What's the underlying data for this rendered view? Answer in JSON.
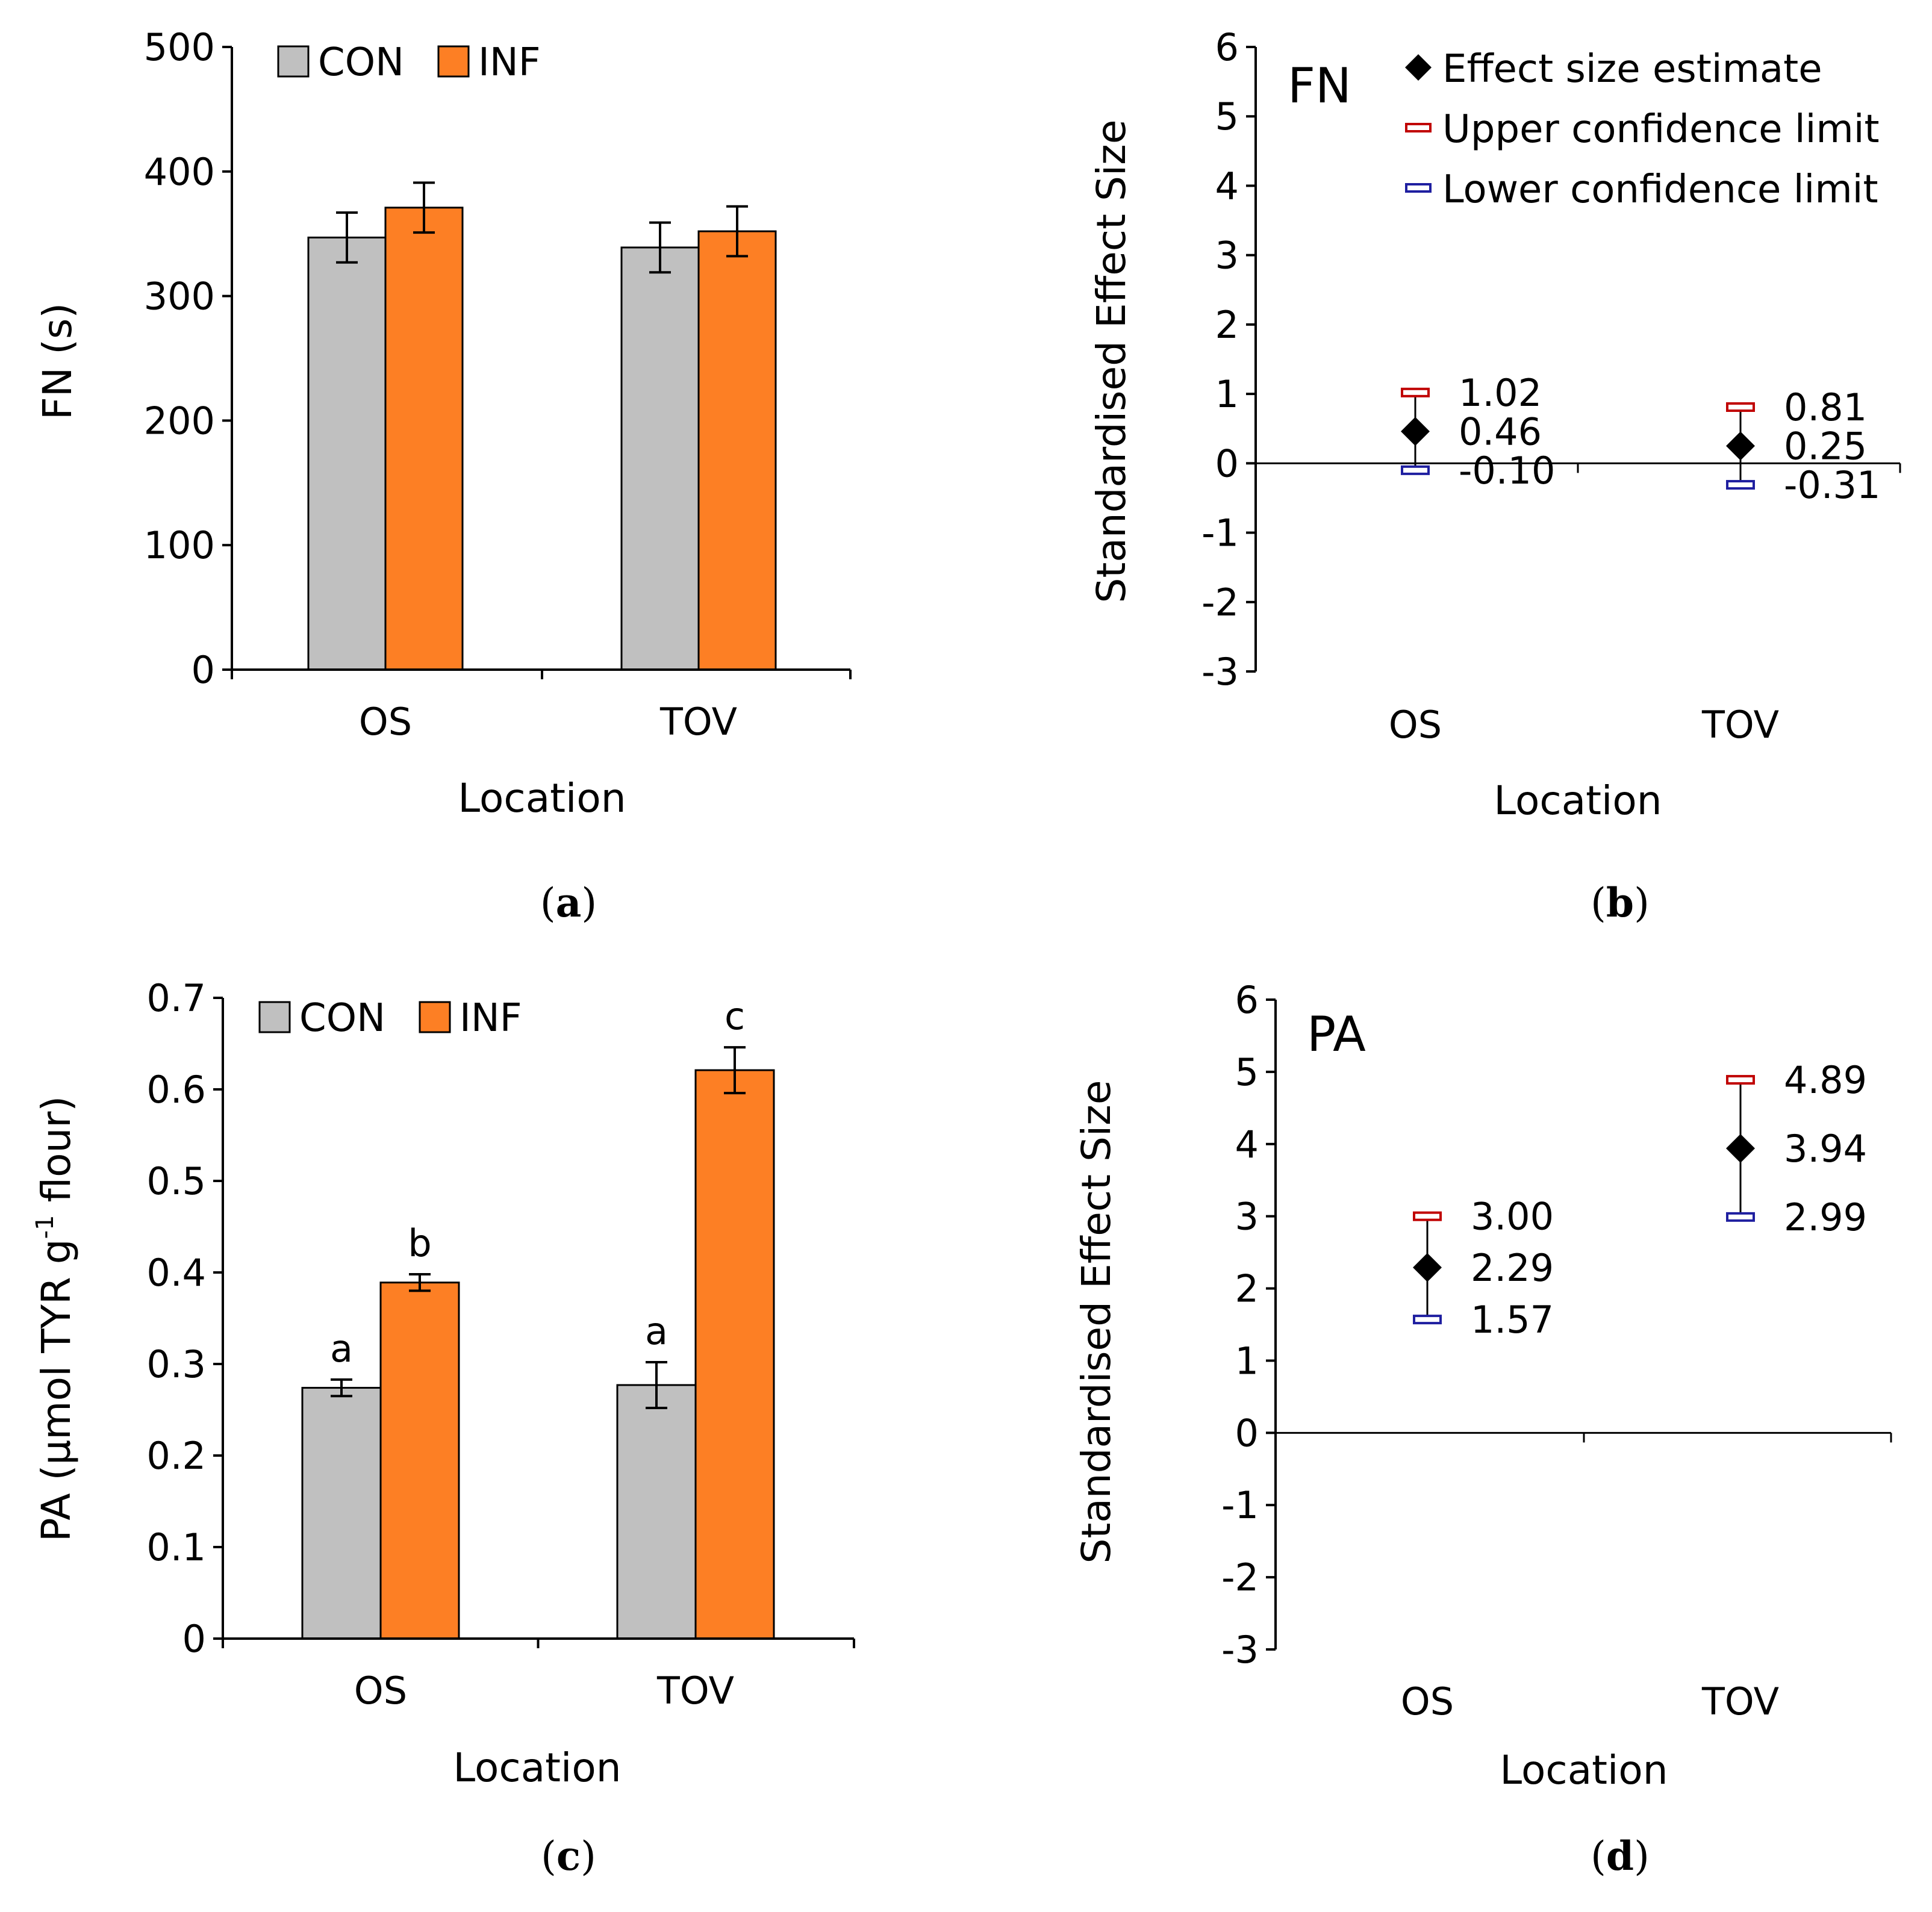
{
  "chart_data": [
    {
      "panel": "a",
      "type": "bar",
      "caption": "a",
      "categories": [
        "OS",
        "TOV"
      ],
      "series": [
        {
          "name": "CON",
          "color": "#c0c0c0",
          "values": [
            347,
            339
          ],
          "errors": [
            20,
            20
          ]
        },
        {
          "name": "INF",
          "color": "#fd7f24",
          "values": [
            371,
            352
          ],
          "errors": [
            20,
            20
          ]
        }
      ],
      "xlabel": "Location",
      "ylabel": "FN (s)",
      "ylim": [
        0,
        500
      ],
      "yticks": [
        "0",
        "100",
        "200",
        "300",
        "400",
        "500"
      ],
      "legend": "top-left",
      "letters": []
    },
    {
      "panel": "b",
      "type": "scatter",
      "caption": "b",
      "title": "FN",
      "categories": [
        "OS",
        "TOV"
      ],
      "estimates": [
        0.46,
        0.25
      ],
      "upper": [
        1.02,
        0.81
      ],
      "lower": [
        -0.1,
        -0.31
      ],
      "labels": {
        "estimate": [
          "0.46",
          "0.25"
        ],
        "upper": [
          "1.02",
          "0.81"
        ],
        "lower": [
          "-0.10",
          "-0.31"
        ]
      },
      "xlabel": "Location",
      "ylabel": "Standardised Effect Size",
      "ylim": [
        -3,
        6
      ],
      "yticks": [
        "-3",
        "-2",
        "-1",
        "0",
        "1",
        "2",
        "3",
        "4",
        "5",
        "6"
      ],
      "legend_entries": [
        "Effect size estimate",
        "Upper confidence limit",
        "Lower confidence limit"
      ],
      "colors": {
        "estimate": "#000000",
        "upper": "#c00000",
        "lower": "#1f1fa0"
      }
    },
    {
      "panel": "c",
      "type": "bar",
      "caption": "c",
      "categories": [
        "OS",
        "TOV"
      ],
      "series": [
        {
          "name": "CON",
          "color": "#c0c0c0",
          "values": [
            0.274,
            0.277
          ],
          "errors": [
            0.009,
            0.025
          ]
        },
        {
          "name": "INF",
          "color": "#fd7f24",
          "values": [
            0.389,
            0.621
          ],
          "errors": [
            0.009,
            0.025
          ]
        }
      ],
      "xlabel": "Location",
      "ylabel": "PA (µmol TYR g-1 flour)",
      "ylabel_parts": {
        "before": "PA (µmol TYR g",
        "sup": "-1",
        "after": " flour)"
      },
      "ylim": [
        0,
        0.7
      ],
      "yticks": [
        "0",
        "0.1",
        "0.2",
        "0.3",
        "0.4",
        "0.5",
        "0.6",
        "0.7"
      ],
      "legend": "top-left",
      "letters": [
        [
          "a",
          "b"
        ],
        [
          "a",
          "c"
        ]
      ]
    },
    {
      "panel": "d",
      "type": "scatter",
      "caption": "d",
      "title": "PA",
      "categories": [
        "OS",
        "TOV"
      ],
      "estimates": [
        2.29,
        3.94
      ],
      "upper": [
        3.0,
        4.89
      ],
      "lower": [
        1.57,
        2.99
      ],
      "labels": {
        "estimate": [
          "2.29",
          "3.94"
        ],
        "upper": [
          "3.00",
          "4.89"
        ],
        "lower": [
          "1.57",
          "2.99"
        ]
      },
      "xlabel": "Location",
      "ylabel": "Standardised Effect Size",
      "ylim": [
        -3,
        6
      ],
      "yticks": [
        "-3",
        "-2",
        "-1",
        "0",
        "1",
        "2",
        "3",
        "4",
        "5",
        "6"
      ],
      "legend_entries": [],
      "colors": {
        "estimate": "#000000",
        "upper": "#c00000",
        "lower": "#1f1fa0"
      }
    }
  ]
}
